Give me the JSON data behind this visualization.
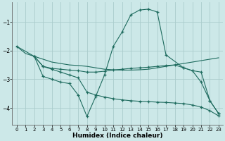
{
  "xlabel": "Humidex (Indice chaleur)",
  "bg_color": "#cce8e8",
  "grid_color": "#aacccc",
  "line_color": "#1e6b5e",
  "xlim": [
    -0.5,
    23.5
  ],
  "ylim": [
    -4.6,
    -0.3
  ],
  "yticks": [
    -4,
    -3,
    -2,
    -1
  ],
  "xticks": [
    0,
    1,
    2,
    3,
    4,
    5,
    6,
    7,
    8,
    9,
    10,
    11,
    12,
    13,
    14,
    15,
    16,
    17,
    18,
    19,
    20,
    21,
    22,
    23
  ],
  "series": [
    {
      "x": [
        0,
        1,
        2,
        3,
        4,
        5,
        6,
        7,
        8,
        9,
        10,
        11,
        12,
        13,
        14,
        15,
        16,
        17,
        18,
        19,
        20,
        21,
        22,
        23
      ],
      "y": [
        -1.85,
        -2.1,
        -2.2,
        -2.3,
        -2.4,
        -2.45,
        -2.5,
        -2.52,
        -2.55,
        -2.6,
        -2.65,
        -2.67,
        -2.68,
        -2.68,
        -2.67,
        -2.65,
        -2.6,
        -2.55,
        -2.5,
        -2.45,
        -2.4,
        -2.35,
        -2.3,
        -2.25
      ],
      "has_markers": false
    },
    {
      "x": [
        0,
        2,
        3,
        4,
        5,
        6,
        7,
        8,
        9,
        10,
        11,
        12,
        13,
        14,
        15,
        16,
        17,
        19,
        20,
        21,
        22,
        23
      ],
      "y": [
        -1.85,
        -2.2,
        -2.9,
        -3.0,
        -3.1,
        -3.15,
        -3.55,
        -4.3,
        -3.6,
        -2.85,
        -1.85,
        -1.35,
        -0.75,
        -0.58,
        -0.55,
        -0.65,
        -2.15,
        -2.6,
        -2.7,
        -3.1,
        -3.75,
        -4.2
      ],
      "has_markers": true
    },
    {
      "x": [
        2,
        3,
        4,
        5,
        6,
        7,
        8,
        9,
        10,
        11,
        12,
        13,
        14,
        15,
        16,
        17,
        18,
        19,
        20,
        21,
        22,
        23
      ],
      "y": [
        -2.2,
        -2.55,
        -2.62,
        -2.65,
        -2.68,
        -2.7,
        -2.75,
        -2.75,
        -2.72,
        -2.68,
        -2.65,
        -2.62,
        -2.6,
        -2.58,
        -2.55,
        -2.52,
        -2.5,
        -2.6,
        -2.7,
        -2.75,
        -3.75,
        -4.2
      ],
      "has_markers": true
    },
    {
      "x": [
        2,
        3,
        4,
        5,
        6,
        7,
        8,
        9,
        10,
        11,
        12,
        13,
        14,
        15,
        16,
        17,
        18,
        19,
        20,
        21,
        22,
        23
      ],
      "y": [
        -2.2,
        -2.55,
        -2.65,
        -2.75,
        -2.85,
        -2.95,
        -3.45,
        -3.55,
        -3.62,
        -3.68,
        -3.72,
        -3.75,
        -3.77,
        -3.78,
        -3.8,
        -3.81,
        -3.83,
        -3.85,
        -3.9,
        -3.97,
        -4.1,
        -4.28
      ],
      "has_markers": true
    }
  ]
}
